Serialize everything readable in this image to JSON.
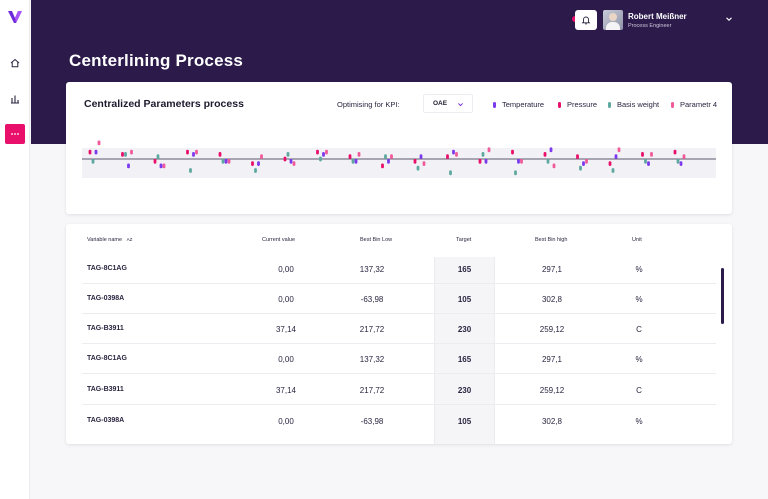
{
  "app": {
    "title": "Centerlining Process",
    "user": {
      "name": "Robert Meißner",
      "role": "Process Engineer"
    },
    "colors": {
      "brand_dark": "#2b1a4a",
      "accent": "#e8106b",
      "purple": "#7c3aed",
      "teal": "#5fa8a0",
      "pink": "#f05a9a"
    }
  },
  "sidebar": {
    "items": [
      {
        "name": "home-icon",
        "active": false
      },
      {
        "name": "bar-chart-icon",
        "active": false
      },
      {
        "name": "more-icon",
        "active": true
      }
    ]
  },
  "panel": {
    "title": "Centralized Parameters process",
    "kpi_label": "Optimising for KPI:",
    "kpi_value": "OAE",
    "legend": [
      {
        "label": "Temperature",
        "color": "#7c3aed"
      },
      {
        "label": "Pressure",
        "color": "#e8106b"
      },
      {
        "label": "Basis weight",
        "color": "#5fa8a0"
      },
      {
        "label": "Parametr 4",
        "color": "#f05a9a"
      }
    ]
  },
  "chart_data": {
    "type": "scatter",
    "series": [
      {
        "name": "Temperature",
        "values": [
          3,
          -3,
          -3,
          2,
          -1,
          -2,
          -1,
          2,
          -1,
          -1,
          1,
          3,
          -1,
          -1,
          4,
          -2,
          1,
          -2,
          -2
        ]
      },
      {
        "name": "Pressure",
        "values": [
          3,
          2,
          -1,
          3,
          2,
          -2,
          0,
          3,
          1,
          -3,
          -1,
          1,
          -1,
          3,
          2,
          1,
          -2,
          2,
          3
        ]
      },
      {
        "name": "Basis weight",
        "values": [
          -1,
          2,
          1,
          -5,
          -1,
          -5,
          2,
          0,
          -1,
          1,
          -4,
          -6,
          2,
          -6,
          -1,
          -4,
          -5,
          -1,
          -1
        ]
      },
      {
        "name": "Parametr 4",
        "values": [
          7,
          3,
          -3,
          3,
          -1,
          1,
          -2,
          3,
          2,
          1,
          -2,
          2,
          4,
          -1,
          -3,
          -1,
          4,
          2,
          1
        ]
      }
    ]
  },
  "table": {
    "headers": {
      "variable": "Variable name",
      "sort_glyph": "AZ",
      "current": "Current value",
      "low": "Best Bin Low",
      "target": "Target",
      "high": "Best Bin high",
      "unit": "Unit"
    },
    "rows": [
      {
        "variable": "TAG-8C1AG",
        "current": "0,00",
        "low": "137,32",
        "target": "165",
        "high": "297,1",
        "unit": "%"
      },
      {
        "variable": "TAG-0398A",
        "current": "0,00",
        "low": "-63,98",
        "target": "105",
        "high": "302,8",
        "unit": "%"
      },
      {
        "variable": "TAG-B3911",
        "current": "37,14",
        "low": "217,72",
        "target": "230",
        "high": "259,12",
        "unit": "C"
      },
      {
        "variable": "TAG-8C1AG",
        "current": "0,00",
        "low": "137,32",
        "target": "165",
        "high": "297,1",
        "unit": "%"
      },
      {
        "variable": "TAG-B3911",
        "current": "37,14",
        "low": "217,72",
        "target": "230",
        "high": "259,12",
        "unit": "C"
      },
      {
        "variable": "TAG-0398A",
        "current": "0,00",
        "low": "-63,98",
        "target": "105",
        "high": "302,8",
        "unit": "%"
      }
    ]
  }
}
